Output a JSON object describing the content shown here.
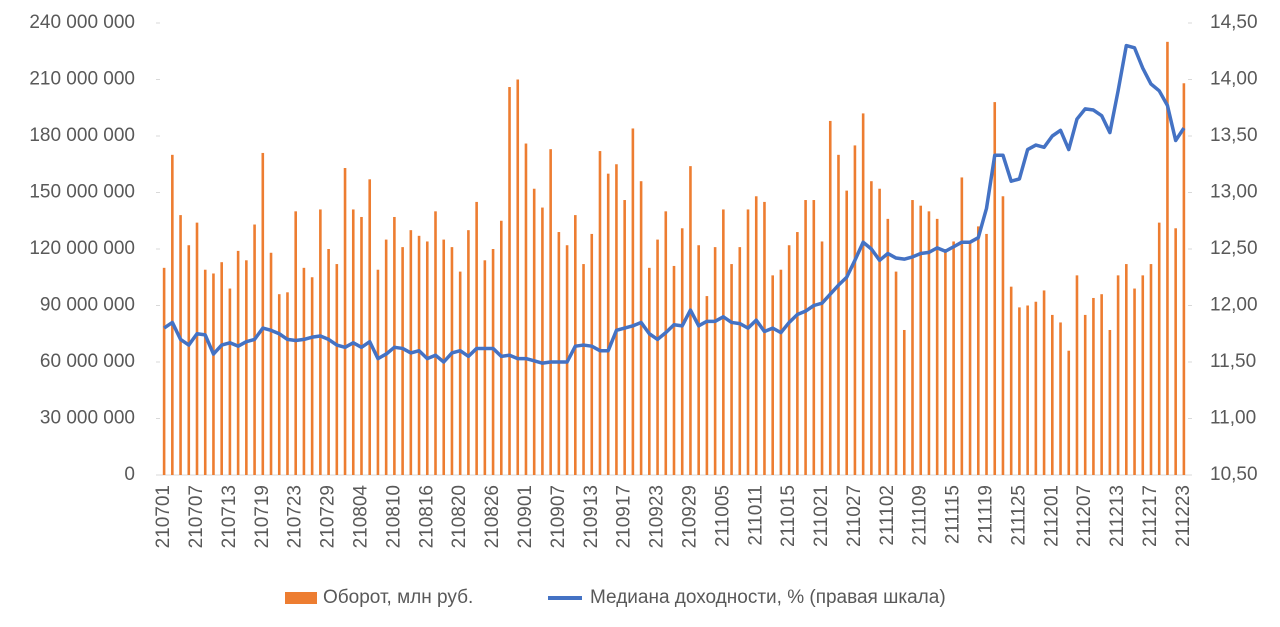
{
  "chart_data": {
    "type": "bar_line",
    "categories": [
      "210701",
      null,
      null,
      null,
      "210707",
      null,
      null,
      null,
      "210713",
      null,
      null,
      null,
      "210719",
      null,
      null,
      null,
      "210723",
      null,
      null,
      null,
      "210729",
      null,
      null,
      null,
      "210804",
      null,
      null,
      null,
      "210810",
      null,
      null,
      null,
      "210816",
      null,
      null,
      null,
      "210820",
      null,
      null,
      null,
      "210826",
      null,
      null,
      null,
      "210901",
      null,
      null,
      null,
      "210907",
      null,
      null,
      null,
      "210913",
      null,
      null,
      null,
      "210917",
      null,
      null,
      null,
      "210923",
      null,
      null,
      null,
      "210929",
      null,
      null,
      null,
      "211005",
      null,
      null,
      null,
      "211011",
      null,
      null,
      null,
      "211015",
      null,
      null,
      null,
      "211021",
      null,
      null,
      null,
      "211027",
      null,
      null,
      null,
      "211102",
      null,
      null,
      null,
      "211109",
      null,
      null,
      null,
      "211115",
      null,
      null,
      null,
      "211119",
      null,
      null,
      null,
      "211125",
      null,
      null,
      null,
      "211201",
      null,
      null,
      null,
      "211207",
      null,
      null,
      null,
      "211213",
      null,
      null,
      null,
      "211217",
      null,
      null,
      null,
      "211223"
    ],
    "series": [
      {
        "name": "Оборот, млн руб.",
        "color": "#ED7D31",
        "axis": "y",
        "values": [
          110000000,
          170000000,
          138000000,
          122000000,
          134000000,
          109000000,
          107000000,
          113000000,
          99000000,
          119000000,
          114000000,
          133000000,
          171000000,
          118000000,
          96000000,
          97000000,
          140000000,
          110000000,
          105000000,
          141000000,
          120000000,
          112000000,
          163000000,
          141000000,
          137000000,
          157000000,
          109000000,
          125000000,
          137000000,
          121000000,
          130000000,
          127000000,
          124000000,
          140000000,
          125000000,
          121000000,
          108000000,
          130000000,
          145000000,
          114000000,
          120000000,
          135000000,
          206000000,
          210000000,
          176000000,
          152000000,
          142000000,
          173000000,
          129000000,
          122000000,
          138000000,
          112000000,
          128000000,
          172000000,
          160000000,
          165000000,
          146000000,
          184000000,
          156000000,
          110000000,
          125000000,
          140000000,
          111000000,
          131000000,
          164000000,
          122000000,
          95000000,
          121000000,
          141000000,
          112000000,
          121000000,
          141000000,
          148000000,
          145000000,
          106000000,
          109000000,
          122000000,
          129000000,
          146000000,
          146000000,
          124000000,
          188000000,
          170000000,
          151000000,
          175000000,
          192000000,
          156000000,
          152000000,
          136000000,
          108000000,
          77000000,
          146000000,
          143000000,
          140000000,
          136000000,
          120000000,
          124000000,
          158000000,
          124000000,
          132000000,
          128000000,
          198000000,
          148000000,
          100000000,
          89000000,
          90000000,
          92000000,
          98000000,
          85000000,
          81000000,
          66000000,
          106000000,
          85000000,
          94000000,
          96000000,
          77000000,
          106000000,
          112000000,
          99000000,
          106000000,
          112000000,
          134000000,
          230000000,
          131000000,
          208000000
        ]
      },
      {
        "name": "Медиана доходности, % (правая шкала)",
        "color": "#4472C4",
        "axis": "y2",
        "values": [
          11.8,
          11.85,
          11.7,
          11.65,
          11.75,
          11.74,
          11.57,
          11.65,
          11.67,
          11.64,
          11.68,
          11.7,
          11.8,
          11.78,
          11.75,
          11.7,
          11.69,
          11.7,
          11.72,
          11.73,
          11.7,
          11.65,
          11.63,
          11.67,
          11.63,
          11.68,
          11.53,
          11.57,
          11.63,
          11.62,
          11.58,
          11.6,
          11.53,
          11.56,
          11.5,
          11.58,
          11.6,
          11.55,
          11.62,
          11.62,
          11.62,
          11.55,
          11.56,
          11.53,
          11.53,
          11.51,
          11.49,
          11.5,
          11.5,
          11.5,
          11.64,
          11.65,
          11.64,
          11.6,
          11.6,
          11.78,
          11.8,
          11.82,
          11.85,
          11.75,
          11.7,
          11.76,
          11.83,
          11.82,
          11.96,
          11.82,
          11.86,
          11.86,
          11.9,
          11.85,
          11.84,
          11.8,
          11.87,
          11.77,
          11.8,
          11.76,
          11.85,
          11.92,
          11.95,
          12.0,
          12.02,
          12.1,
          12.18,
          12.25,
          12.4,
          12.56,
          12.5,
          12.4,
          12.46,
          12.42,
          12.41,
          12.43,
          12.46,
          12.47,
          12.51,
          12.48,
          12.52,
          12.56,
          12.56,
          12.6,
          12.86,
          13.33,
          13.33,
          13.1,
          13.12,
          13.38,
          13.42,
          13.4,
          13.5,
          13.55,
          13.38,
          13.65,
          13.74,
          13.73,
          13.68,
          13.53,
          13.9,
          14.3,
          14.28,
          14.1,
          13.96,
          13.9,
          13.77,
          13.46,
          13.57
        ]
      }
    ],
    "ylim": [
      0,
      240000000
    ],
    "yticks": [
      {
        "value": 0,
        "label": "0"
      },
      {
        "value": 30000000,
        "label": "30 000 000"
      },
      {
        "value": 60000000,
        "label": "60 000 000"
      },
      {
        "value": 90000000,
        "label": "90 000 000"
      },
      {
        "value": 120000000,
        "label": "120 000 000"
      },
      {
        "value": 150000000,
        "label": "150 000 000"
      },
      {
        "value": 180000000,
        "label": "180 000 000"
      },
      {
        "value": 210000000,
        "label": "210 000 000"
      },
      {
        "value": 240000000,
        "label": "240 000 000"
      }
    ],
    "y2lim": [
      10.5,
      14.5
    ],
    "y2ticks": [
      {
        "value": 10.5,
        "label": "10,50"
      },
      {
        "value": 11,
        "label": "11,00"
      },
      {
        "value": 11.5,
        "label": "11,50"
      },
      {
        "value": 12,
        "label": "12,00"
      },
      {
        "value": 12.5,
        "label": "12,50"
      },
      {
        "value": 13,
        "label": "13,00"
      },
      {
        "value": 13.5,
        "label": "13,50"
      },
      {
        "value": 14,
        "label": "14,00"
      },
      {
        "value": 14.5,
        "label": "14,50"
      }
    ],
    "legend": "bottom"
  }
}
